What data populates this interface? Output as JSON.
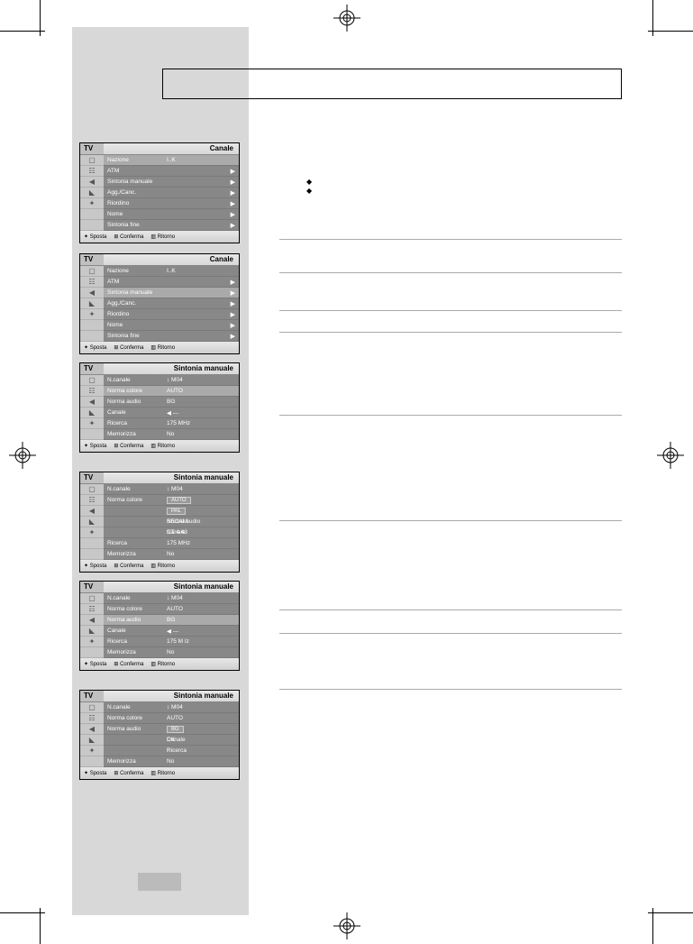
{
  "menu_common": {
    "tv_label": "TV",
    "footer": {
      "a": "✦ Sposta",
      "b": "⊞ Conferma",
      "c": "▥ Ritorno"
    },
    "icons": [
      "▢",
      "☷",
      "◀",
      "◣",
      "✦"
    ]
  },
  "menu1": {
    "title": "Canale",
    "items": [
      {
        "label": "Nazione",
        "val": "I..K",
        "sel": true
      },
      {
        "label": "ATM"
      },
      {
        "label": "Sintonia manuale"
      },
      {
        "label": "Agg./Canc."
      },
      {
        "label": "Riordino"
      },
      {
        "label": "Nome"
      },
      {
        "label": "Sintonia fine"
      }
    ]
  },
  "menu2": {
    "title": "Canale",
    "items": [
      {
        "label": "Nazione",
        "val": "I..K"
      },
      {
        "label": "ATM"
      },
      {
        "label": "Sintonia manuale",
        "sel": true
      },
      {
        "label": "Agg./Canc."
      },
      {
        "label": "Riordino"
      },
      {
        "label": "Nome"
      },
      {
        "label": "Sintonia fine"
      }
    ]
  },
  "menu3": {
    "title": "Sintonia manuale",
    "items": [
      {
        "label": "N.canale",
        "val": "↕   M04"
      },
      {
        "label": "Norma colore",
        "val": "AUTO",
        "sel": true
      },
      {
        "label": "Norma audio",
        "val": "BG"
      },
      {
        "label": "Canale",
        "val": "◀    ---"
      },
      {
        "label": "Ricerca",
        "val": "175   MHz"
      },
      {
        "label": "Memorizza",
        "val": "No"
      }
    ]
  },
  "menu4": {
    "title": "Sintonia manuale",
    "items": [
      {
        "label": "N.canale",
        "val": "↕   M04"
      },
      {
        "label": "Norma colore",
        "val": "AUTO",
        "pill": true
      },
      {
        "label": "",
        "val": "PAL",
        "sub": true,
        "pill": true
      },
      {
        "label": "Norma audio",
        "val": "SECAM",
        "sub": true
      },
      {
        "label": "Canale",
        "val": "NT 4.43",
        "sub": true
      },
      {
        "label": "Ricerca",
        "val": "175   MHz"
      },
      {
        "label": "Memorizza",
        "val": "No"
      }
    ]
  },
  "menu5": {
    "title": "Sintonia manuale",
    "items": [
      {
        "label": "N.canale",
        "val": "↕   M04"
      },
      {
        "label": "Norma colore",
        "val": "AUTO"
      },
      {
        "label": "Norma audio",
        "val": "BG",
        "sel": true
      },
      {
        "label": "Canale",
        "val": "◀    ---"
      },
      {
        "label": "Ricerca",
        "val": "175   M Iz"
      },
      {
        "label": "Memorizza",
        "val": "No"
      }
    ]
  },
  "menu6": {
    "title": "Sintonia manuale",
    "items": [
      {
        "label": "N.canale",
        "val": "↕   M04"
      },
      {
        "label": "Norma colore",
        "val": "AUTO"
      },
      {
        "label": "Norma audio",
        "val": "BG",
        "pill": true
      },
      {
        "label": "Canale",
        "val": "DK",
        "sub": true
      },
      {
        "label": "Ricerca",
        "val": "I",
        "sub": true
      },
      {
        "label": "Memorizza",
        "val": "No"
      }
    ]
  },
  "hlines": [
    265,
    302,
    344,
    368,
    460,
    577,
    676,
    702,
    764
  ],
  "menu_tops": [
    158,
    281,
    402,
    523,
    644,
    765
  ]
}
